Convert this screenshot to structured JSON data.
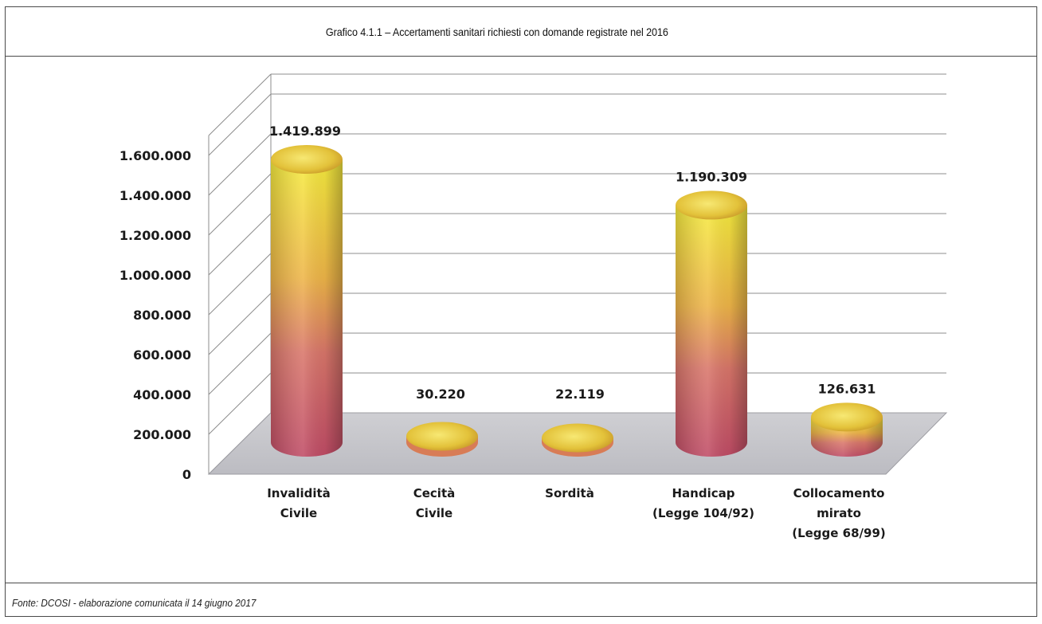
{
  "header": {
    "title": "Grafico 4.1.1 – Accertamenti sanitari richiesti con domande registrate nel 2016"
  },
  "footer": {
    "source": "Fonte: DCOSI  - elaborazione comunicata il 14 giugno 2017"
  },
  "chart_data": {
    "type": "bar",
    "style": "3d-cylinder",
    "title": "Grafico 4.1.1 – Accertamenti sanitari richiesti con domande registrate nel 2016",
    "categories": [
      [
        "Invalidità",
        "Civile"
      ],
      [
        "Cecità",
        "Civile"
      ],
      [
        "Sordità"
      ],
      [
        "Handicap",
        "(Legge 104/92)"
      ],
      [
        "Collocamento",
        "mirato",
        "(Legge 68/99)"
      ]
    ],
    "values": [
      1419899,
      30220,
      22119,
      1190309,
      126631
    ],
    "value_labels": [
      "1.419.899",
      "30.220",
      "22.119",
      "1.190.309",
      "126.631"
    ],
    "yticks": [
      0,
      200000,
      400000,
      600000,
      800000,
      1000000,
      1200000,
      1400000,
      1600000
    ],
    "ytick_labels": [
      "0",
      "200.000",
      "400.000",
      "600.000",
      "800.000",
      "1.000.000",
      "1.200.000",
      "1.400.000",
      "1.600.000"
    ],
    "ylim": [
      0,
      1600000
    ],
    "grid": true,
    "legend": "none",
    "colors": {
      "bar_top": "#f3e23a",
      "bar_mid": "#e8a640",
      "bar_bottom": "#c9566a",
      "floor": "#c8c8cc",
      "grid": "#8a8a8a"
    }
  }
}
